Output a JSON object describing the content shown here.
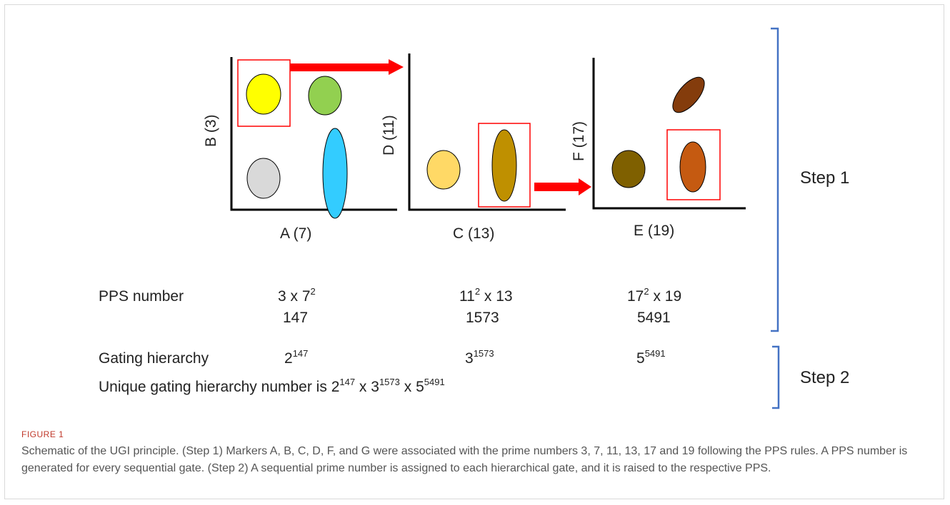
{
  "panels": {
    "p1": {
      "x_label": "A (7)",
      "y_label": "B (3)"
    },
    "p2": {
      "x_label": "C (13)",
      "y_label": "D (11)"
    },
    "p3": {
      "x_label": "E (19)",
      "y_label": "F (17)"
    }
  },
  "steps": {
    "step1": "Step 1",
    "step2": "Step 2"
  },
  "pps": {
    "label": "PPS number",
    "col1": {
      "base": "3 x 7",
      "exp": "2",
      "value": "147"
    },
    "col2": {
      "base": "11",
      "exp": "2",
      "rest": "x 13",
      "value": "1573"
    },
    "col3": {
      "base": "17",
      "exp": "2",
      "rest": "x 19",
      "value": "5491"
    }
  },
  "gating": {
    "label": "Gating hierarchy",
    "g1": {
      "base": "2",
      "exp": "147"
    },
    "g2": {
      "base": "3",
      "exp": "1573"
    },
    "g3": {
      "base": "5",
      "exp": "5491"
    }
  },
  "unique": {
    "prefix": "Unique gating hierarchy number is",
    "b1": "2",
    "e1": "147",
    "x1": "x",
    "b2": "3",
    "e2": "1573",
    "x2": "x",
    "b3": "5",
    "e3": "5491"
  },
  "colors": {
    "yellow": "#ffff00",
    "green": "#92d050",
    "gray": "#d9d9d9",
    "cyan": "#33ccff",
    "light_orange": "#ffd966",
    "gold": "#bf9000",
    "dark_brown": "#7f6000",
    "rust": "#c55a11",
    "brown": "#843c0c",
    "red": "#ff0000",
    "blue": "#4472c4"
  },
  "caption": {
    "figure_label": "FIGURE 1",
    "text": "Schematic of the UGI principle. (Step 1) Markers A, B, C, D, F, and G were associated with the prime numbers 3, 7, 11, 13, 17 and 19 following the PPS rules. A PPS number is generated for every sequential gate. (Step 2) A sequential prime number is assigned to each hierarchical gate, and it is raised to the respective PPS."
  }
}
